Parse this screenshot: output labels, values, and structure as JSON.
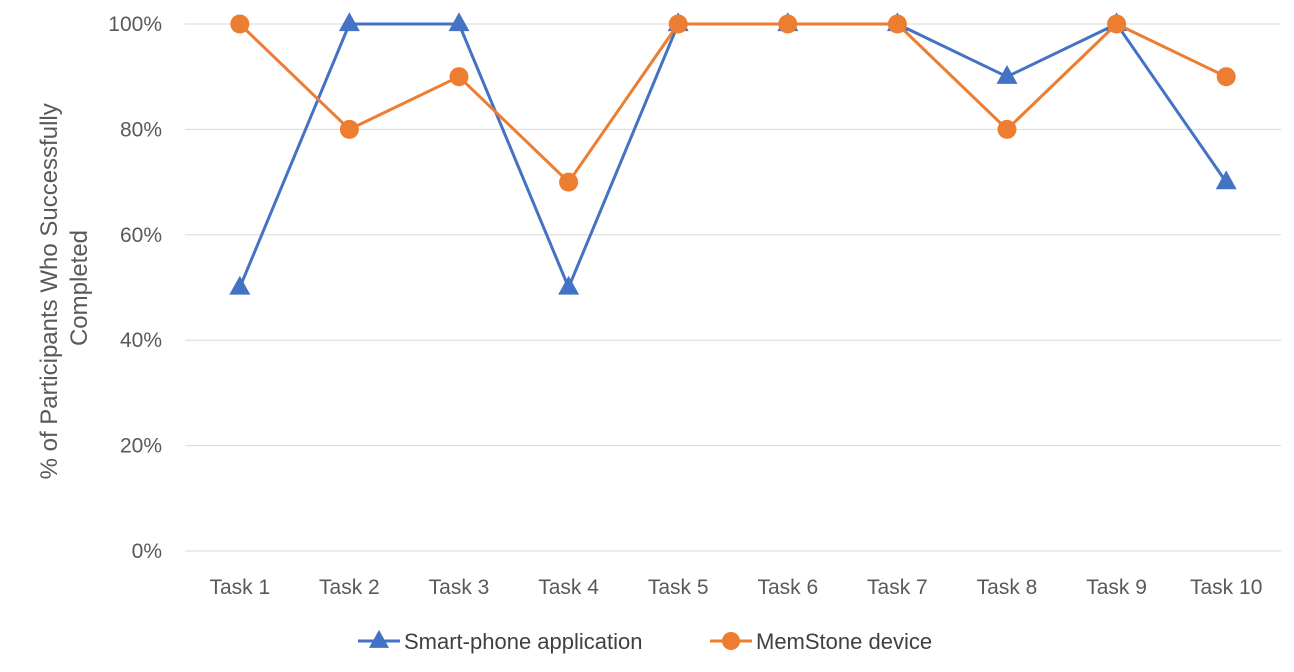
{
  "chart_data": {
    "type": "line",
    "title": "",
    "xlabel": "",
    "ylabel_lines": [
      "% of Participants Who Successfully",
      "Completed"
    ],
    "categories": [
      "Task 1",
      "Task 2",
      "Task 3",
      "Task 4",
      "Task 5",
      "Task 6",
      "Task 7",
      "Task 8",
      "Task 9",
      "Task 10"
    ],
    "ylim": [
      0,
      100
    ],
    "yticks": [
      0,
      20,
      40,
      60,
      80,
      100
    ],
    "ytick_labels": [
      "0%",
      "20%",
      "40%",
      "60%",
      "80%",
      "100%"
    ],
    "grid": true,
    "legend_position": "bottom",
    "series": [
      {
        "name": "Smart-phone application",
        "marker": "triangle",
        "color": "#4472c4",
        "values": [
          50,
          100,
          100,
          50,
          100,
          100,
          100,
          90,
          100,
          70
        ]
      },
      {
        "name": "MemStone device",
        "marker": "circle",
        "color": "#ed7d31",
        "values": [
          100,
          80,
          90,
          70,
          100,
          100,
          100,
          80,
          100,
          90
        ]
      }
    ]
  }
}
